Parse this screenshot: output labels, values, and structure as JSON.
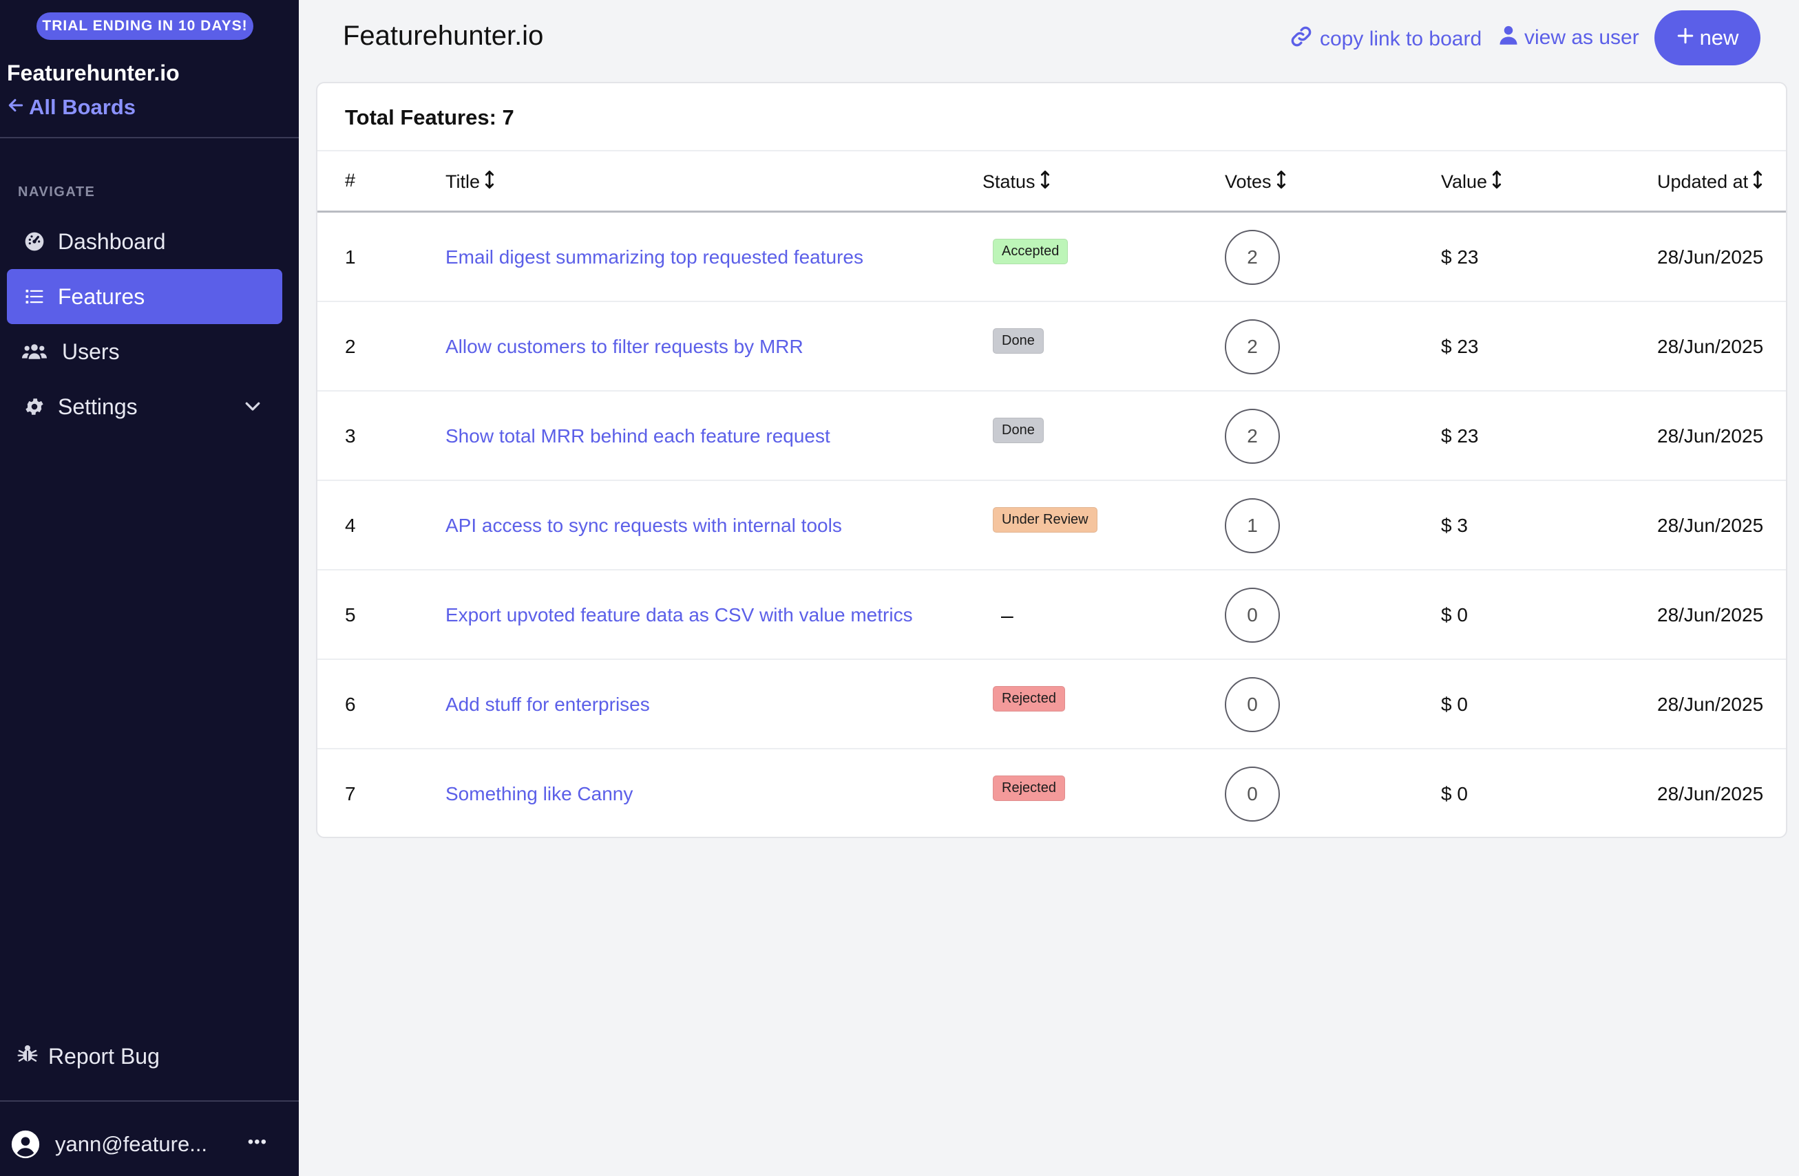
{
  "sidebar": {
    "trial_badge": "TRIAL ENDING IN 10 DAYS!",
    "brand": "Featurehunter.io",
    "all_boards": "All Boards",
    "nav_heading": "NAVIGATE",
    "items": [
      {
        "label": "Dashboard",
        "icon": "dashboard-icon",
        "active": false
      },
      {
        "label": "Features",
        "icon": "list-icon",
        "active": true
      },
      {
        "label": "Users",
        "icon": "users-icon",
        "active": false
      },
      {
        "label": "Settings",
        "icon": "gear-icon",
        "active": false
      }
    ],
    "report_bug": "Report Bug",
    "user": "yann@feature...",
    "more": "•••"
  },
  "header": {
    "title": "Featurehunter.io",
    "copy_link": "copy link to board",
    "view_as_user": "view as user",
    "new_button": "new"
  },
  "table": {
    "total_label": "Total Features: 7",
    "columns": {
      "num": "#",
      "title": "Title",
      "status": "Status",
      "votes": "Votes",
      "value": "Value",
      "updated": "Updated at"
    },
    "rows": [
      {
        "num": "1",
        "title": "Email digest summarizing top requested features",
        "status": "Accepted",
        "votes": "2",
        "value": "$ 23",
        "updated": "28/Jun/2025"
      },
      {
        "num": "2",
        "title": "Allow customers to filter requests by MRR",
        "status": "Done",
        "votes": "2",
        "value": "$ 23",
        "updated": "28/Jun/2025"
      },
      {
        "num": "3",
        "title": "Show total MRR behind each feature request",
        "status": "Done",
        "votes": "2",
        "value": "$ 23",
        "updated": "28/Jun/2025"
      },
      {
        "num": "4",
        "title": "API access to sync requests with internal tools",
        "status": "Under Review",
        "votes": "1",
        "value": "$ 3",
        "updated": "28/Jun/2025"
      },
      {
        "num": "5",
        "title": "Export upvoted feature data as CSV with value metrics",
        "status": "–",
        "votes": "0",
        "value": "$ 0",
        "updated": "28/Jun/2025"
      },
      {
        "num": "6",
        "title": "Add stuff for enterprises",
        "status": "Rejected",
        "votes": "0",
        "value": "$ 0",
        "updated": "28/Jun/2025"
      },
      {
        "num": "7",
        "title": "Something like Canny",
        "status": "Rejected",
        "votes": "0",
        "value": "$ 0",
        "updated": "28/Jun/2025"
      }
    ]
  },
  "colors": {
    "accent": "#5b5fe8",
    "sidebar_bg": "#11112b",
    "status_accepted": "#bdf5b8",
    "status_done": "#c9cbd1",
    "status_under_review": "#f5c49e",
    "status_rejected": "#f39a9a"
  }
}
